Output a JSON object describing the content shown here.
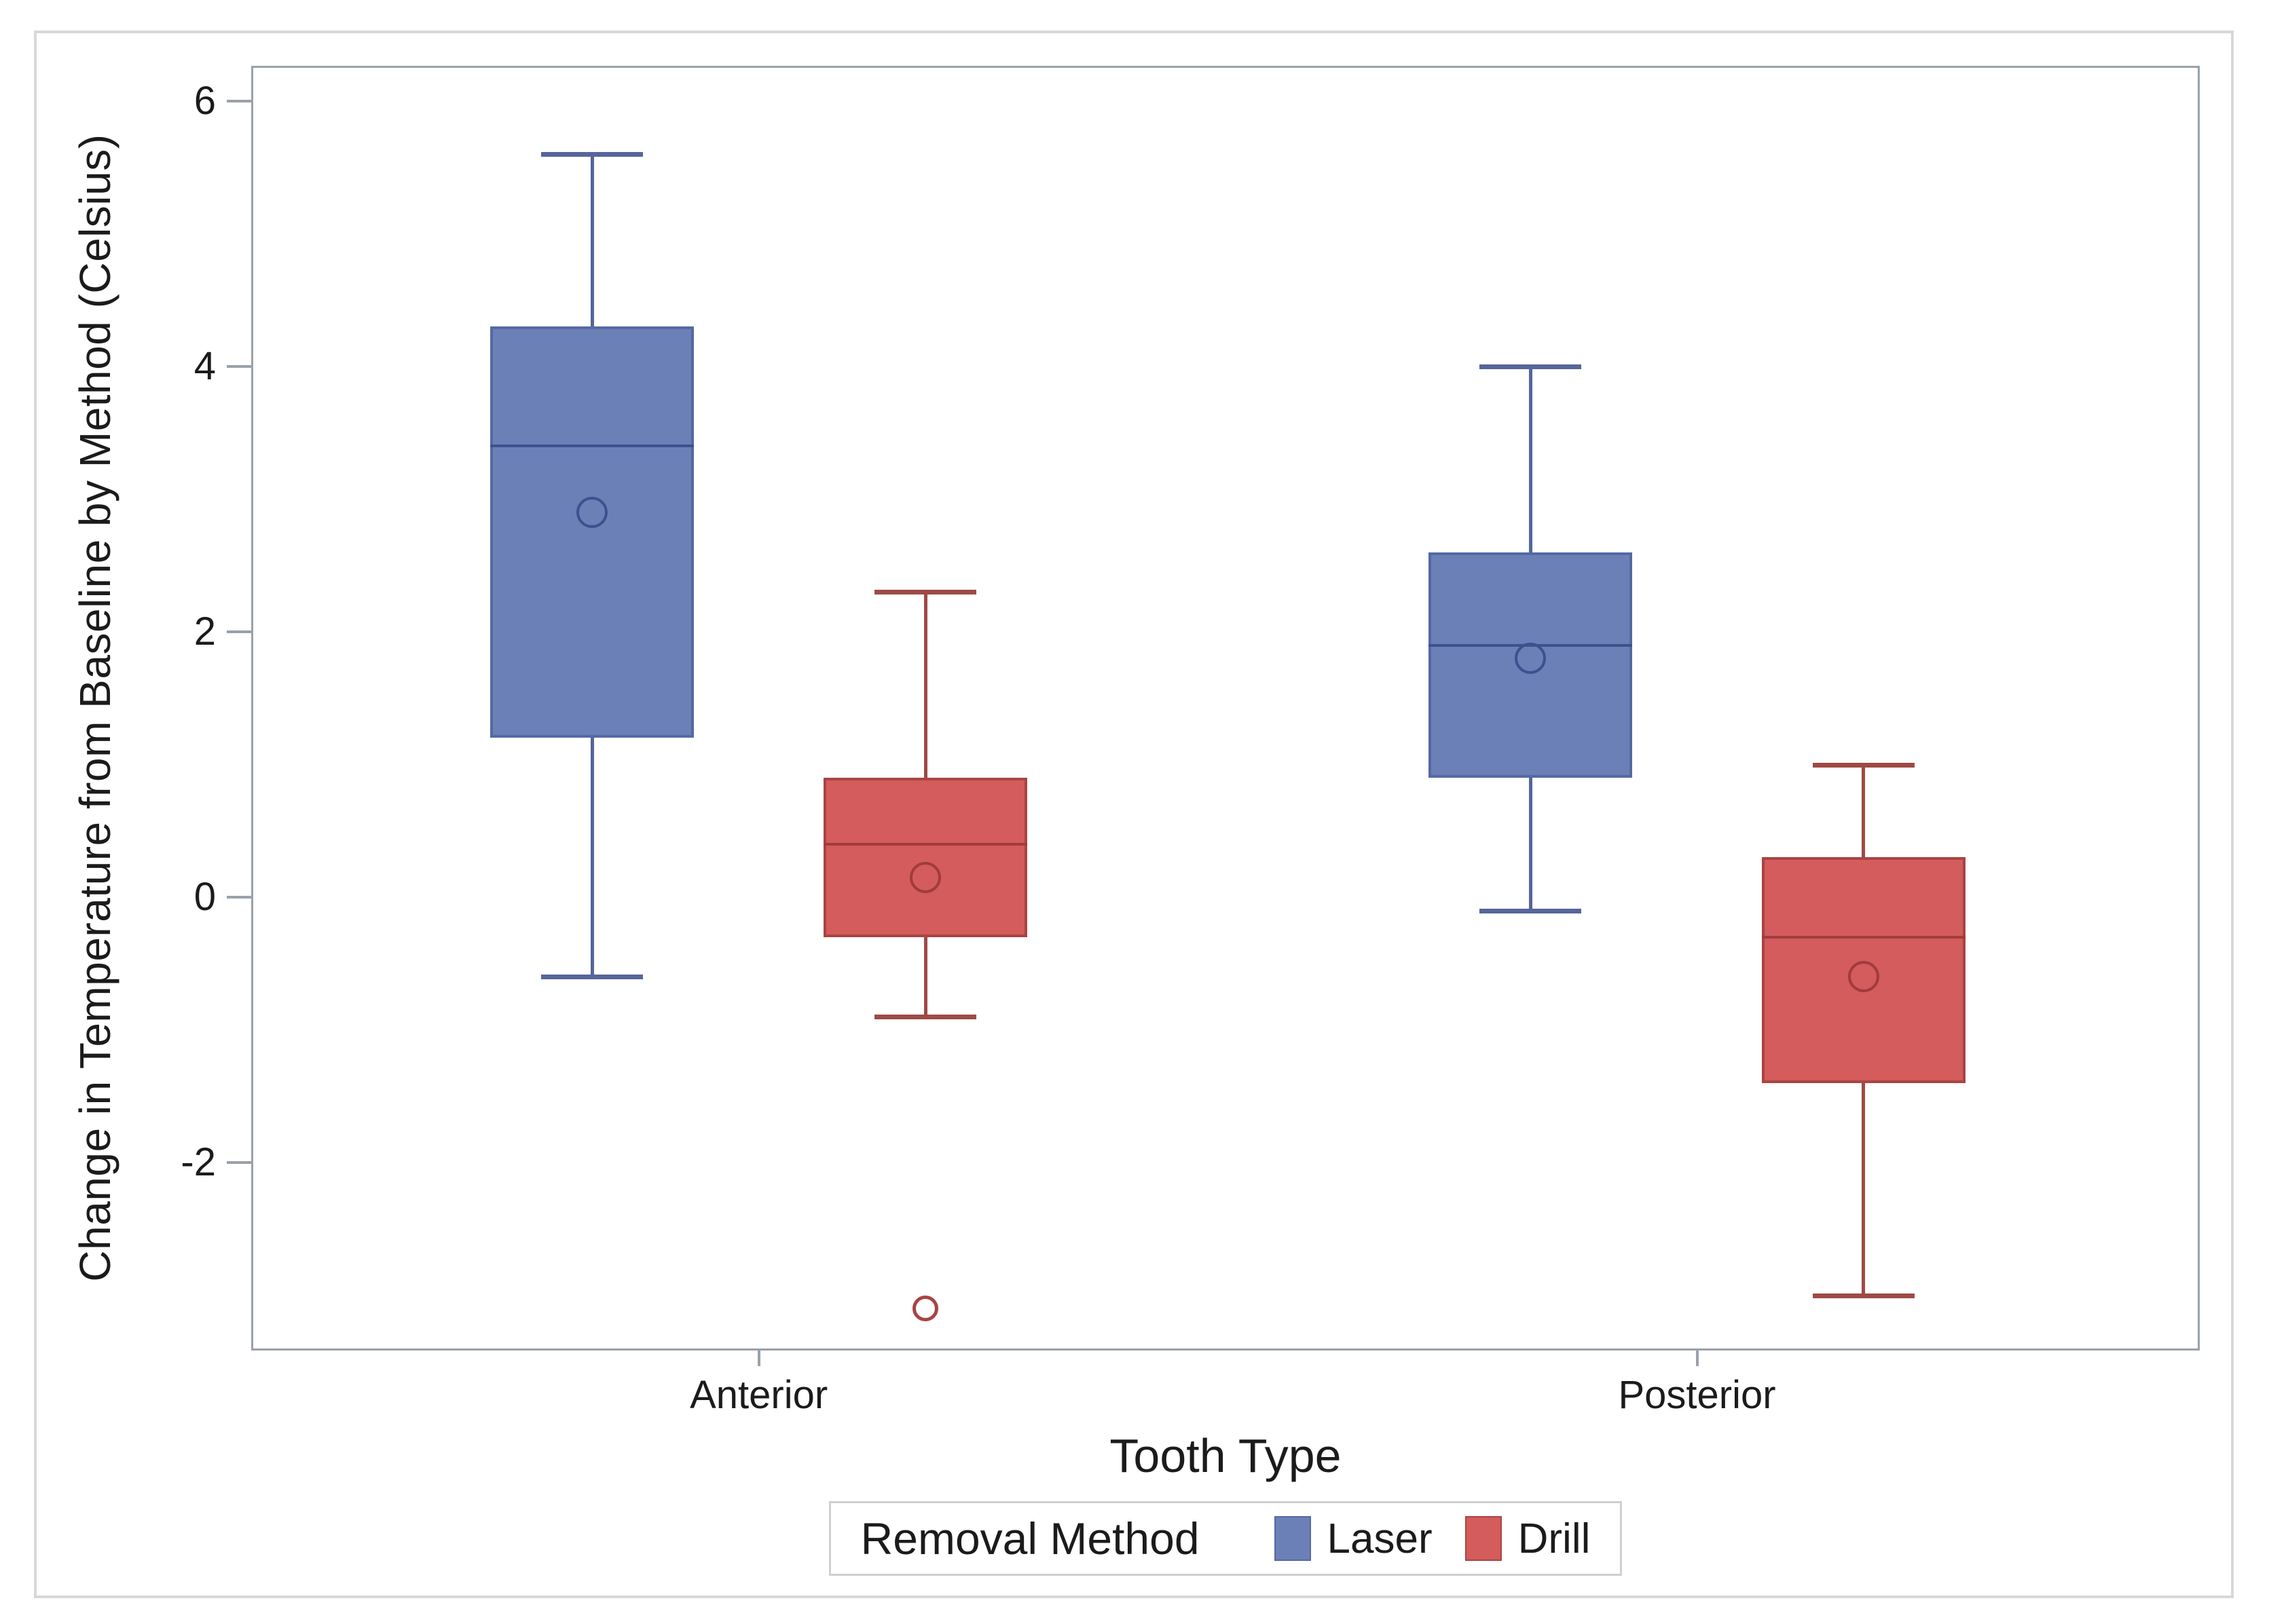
{
  "chart_data": {
    "type": "grouped_boxplot",
    "title": "",
    "xlabel": "Tooth Type",
    "ylabel": "Change in Temperature from Baseline by Method (Celsius)",
    "categories": [
      "Anterior",
      "Posterior"
    ],
    "y_ticks": [
      6,
      4,
      2,
      0,
      -2
    ],
    "ylim": [
      -3.4,
      6.25
    ],
    "grid": "off",
    "legend": {
      "title": "Removal Method",
      "position": "bottom",
      "entries": [
        {
          "label": "Laser",
          "color": "#6c80b8",
          "border": "#5668a4"
        },
        {
          "label": "Drill",
          "color": "#d45c5c",
          "border": "#a84443"
        }
      ]
    },
    "series": [
      {
        "name": "Laser",
        "fill": "#6c80b8",
        "stroke": "#5668a4",
        "whisker_color": "#56659b",
        "median_color": "#3f508e",
        "boxes": [
          {
            "category": "Anterior",
            "whisker_low": -0.6,
            "q1": 1.2,
            "median": 3.4,
            "q3": 4.3,
            "whisker_high": 5.6,
            "mean": 2.9,
            "outliers": []
          },
          {
            "category": "Posterior",
            "whisker_low": -0.1,
            "q1": 0.9,
            "median": 1.9,
            "q3": 2.6,
            "whisker_high": 4.0,
            "mean": 1.8,
            "outliers": []
          }
        ]
      },
      {
        "name": "Drill",
        "fill": "#d45c5c",
        "stroke": "#a84443",
        "whisker_color": "#9e4a46",
        "median_color": "#a03c3c",
        "boxes": [
          {
            "category": "Anterior",
            "whisker_low": -0.9,
            "q1": -0.3,
            "median": 0.4,
            "q3": 0.9,
            "whisker_high": 2.3,
            "mean": 0.15,
            "outliers": [
              -3.1
            ]
          },
          {
            "category": "Posterior",
            "whisker_low": -3.0,
            "q1": -1.4,
            "median": -0.3,
            "q3": 0.3,
            "whisker_high": 1.0,
            "mean": -0.6,
            "outliers": []
          }
        ]
      }
    ]
  },
  "colors": {
    "frame": "#99a1ab",
    "outer_border": "#d8d8d8",
    "text": "#1b1b1b",
    "legend_border": "#cfcfcf"
  }
}
